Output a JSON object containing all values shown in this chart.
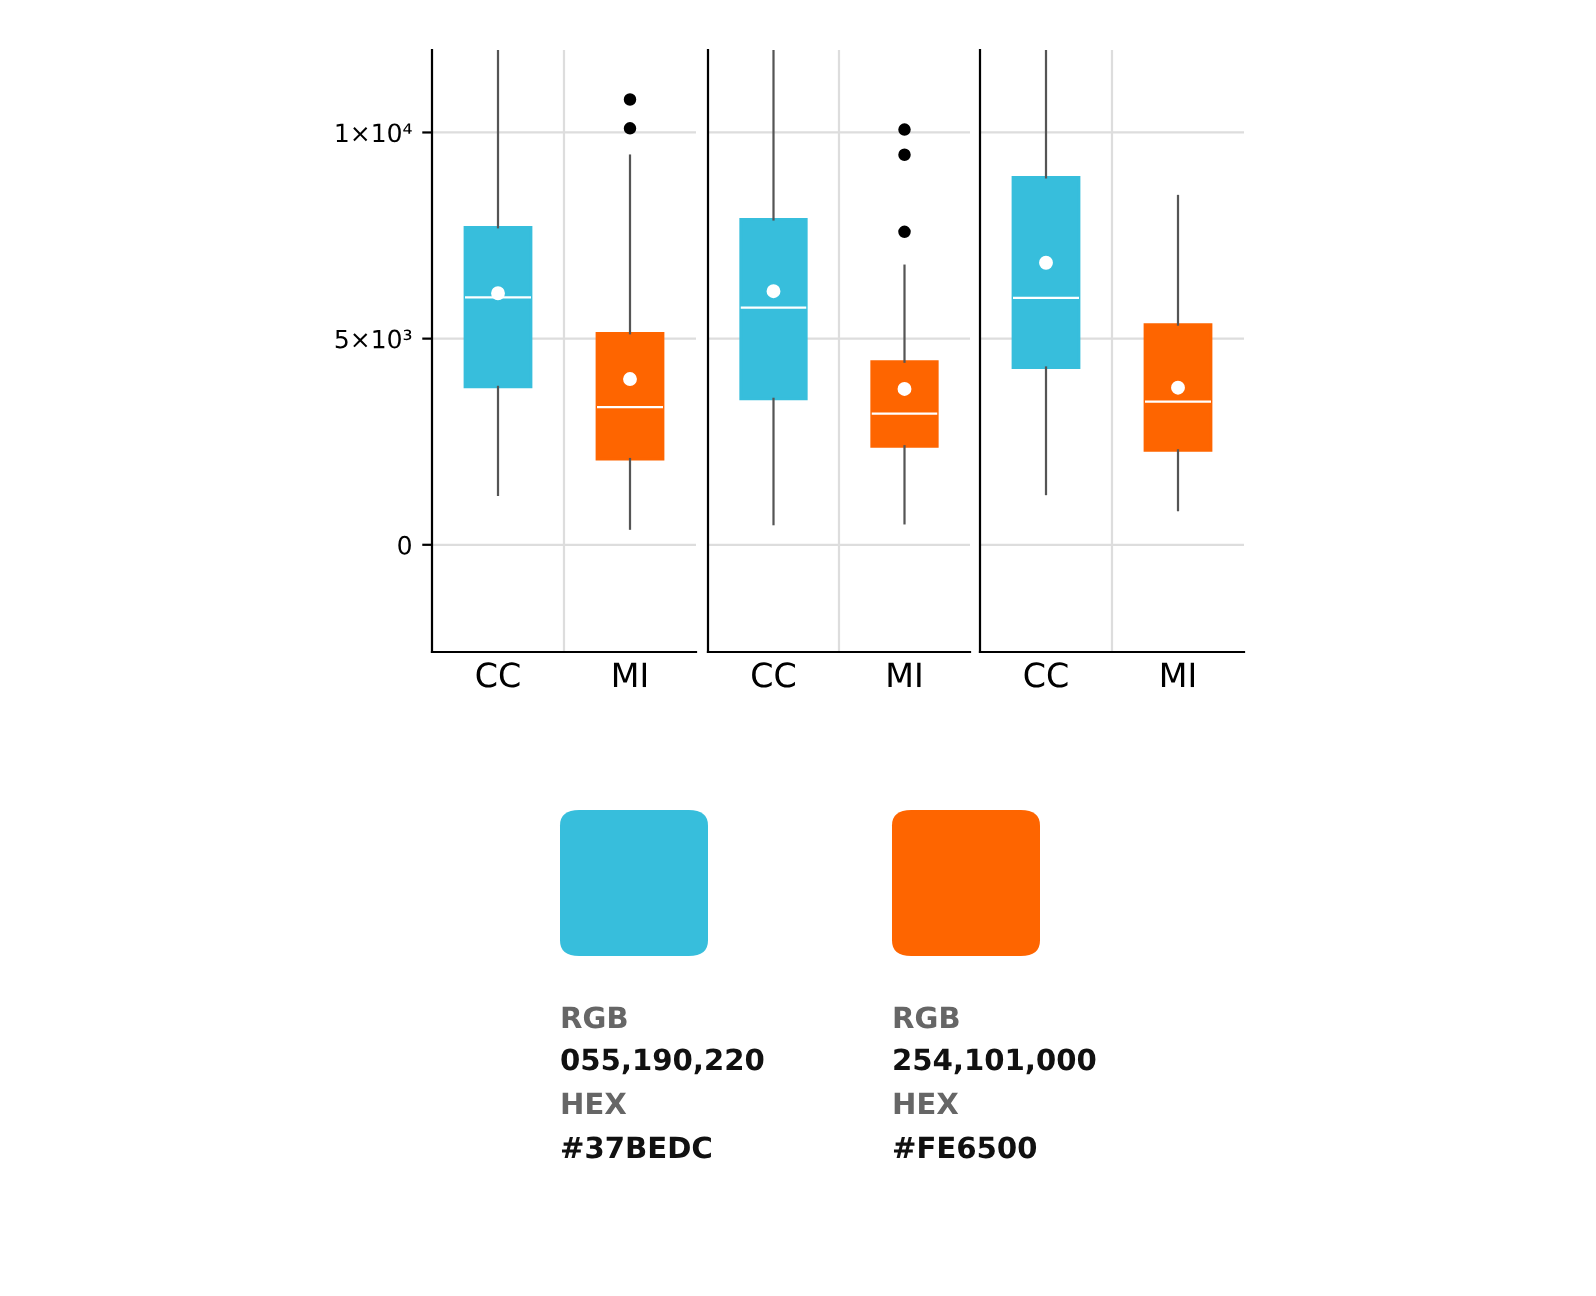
{
  "chart_data": [
    {
      "type": "box",
      "categories": [
        "CC",
        "MI"
      ],
      "colors": [
        "#37bedc",
        "#fe6500"
      ],
      "ylim": [
        -2600,
        12000
      ],
      "yticks": [
        0,
        {
          "value": 5000,
          "label": "5×10³"
        },
        {
          "value": 10000,
          "label": "1×10⁴"
        }
      ],
      "grid": true,
      "boxes": [
        {
          "low": 1210,
          "q1": 3830,
          "median": 6000,
          "q3": 7700,
          "high": 12000,
          "mean": 6100
        },
        {
          "low": 390,
          "q1": 2080,
          "median": 3340,
          "q3": 5130,
          "high": 9440,
          "mean": 4020,
          "outliers": [
            10800,
            10100
          ]
        }
      ]
    },
    {
      "type": "box",
      "categories": [
        "CC",
        "MI"
      ],
      "colors": [
        "#37bedc",
        "#fe6500"
      ],
      "ylim": [
        -2600,
        12000
      ],
      "tick_labels": "x",
      "grid": true,
      "boxes": [
        {
          "low": 500,
          "q1": 3540,
          "median": 5750,
          "q3": 7890,
          "high": 12000,
          "mean": 6150
        },
        {
          "low": 520,
          "q1": 2390,
          "median": 3180,
          "q3": 4440,
          "high": 6770,
          "mean": 3780,
          "outliers": [
            10070,
            9460,
            7590
          ]
        }
      ]
    },
    {
      "type": "box",
      "categories": [
        "CC",
        "MI"
      ],
      "colors": [
        "#37bedc",
        "#fe6500"
      ],
      "ylim": [
        -2600,
        12000
      ],
      "tick_labels": "x",
      "grid": true,
      "boxes": [
        {
          "low": 1230,
          "q1": 4300,
          "median": 5990,
          "q3": 8910,
          "high": 12000,
          "mean": 6840
        },
        {
          "low": 840,
          "q1": 2290,
          "median": 3470,
          "q3": 5340,
          "high": 8460,
          "mean": 3810
        }
      ]
    },
    {
      "type": "other",
      "colors": [
        "#37bedc",
        "#fe6500"
      ],
      "annotations": [
        "RGB",
        "055,190,220",
        "HEX",
        "#37BEDC",
        "RGB",
        "254,101,000",
        "HEX",
        "#FE6500"
      ]
    }
  ]
}
